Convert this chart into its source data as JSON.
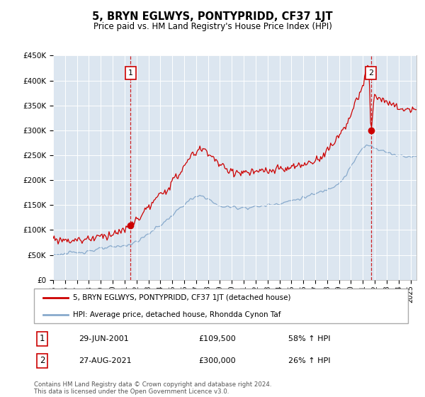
{
  "title": "5, BRYN EGLWYS, PONTYPRIDD, CF37 1JT",
  "subtitle": "Price paid vs. HM Land Registry's House Price Index (HPI)",
  "legend_line1": "5, BRYN EGLWYS, PONTYPRIDD, CF37 1JT (detached house)",
  "legend_line2": "HPI: Average price, detached house, Rhondda Cynon Taf",
  "annotation1_label": "1",
  "annotation1_date": "29-JUN-2001",
  "annotation1_price": "£109,500",
  "annotation1_hpi": "58% ↑ HPI",
  "annotation2_label": "2",
  "annotation2_date": "27-AUG-2021",
  "annotation2_price": "£300,000",
  "annotation2_hpi": "26% ↑ HPI",
  "footer": "Contains HM Land Registry data © Crown copyright and database right 2024.\nThis data is licensed under the Open Government Licence v3.0.",
  "sale1_year": 2001.5,
  "sale1_price": 109500,
  "sale2_year": 2021.67,
  "sale2_price": 300000,
  "property_color": "#cc0000",
  "hpi_color": "#88aacc",
  "dashed_color": "#cc0000",
  "bg_color": "#dce6f0",
  "ylim": [
    0,
    450000
  ],
  "xlim_start": 1995,
  "xlim_end": 2025.5,
  "yticks": [
    0,
    50000,
    100000,
    150000,
    200000,
    250000,
    300000,
    350000,
    400000,
    450000
  ]
}
